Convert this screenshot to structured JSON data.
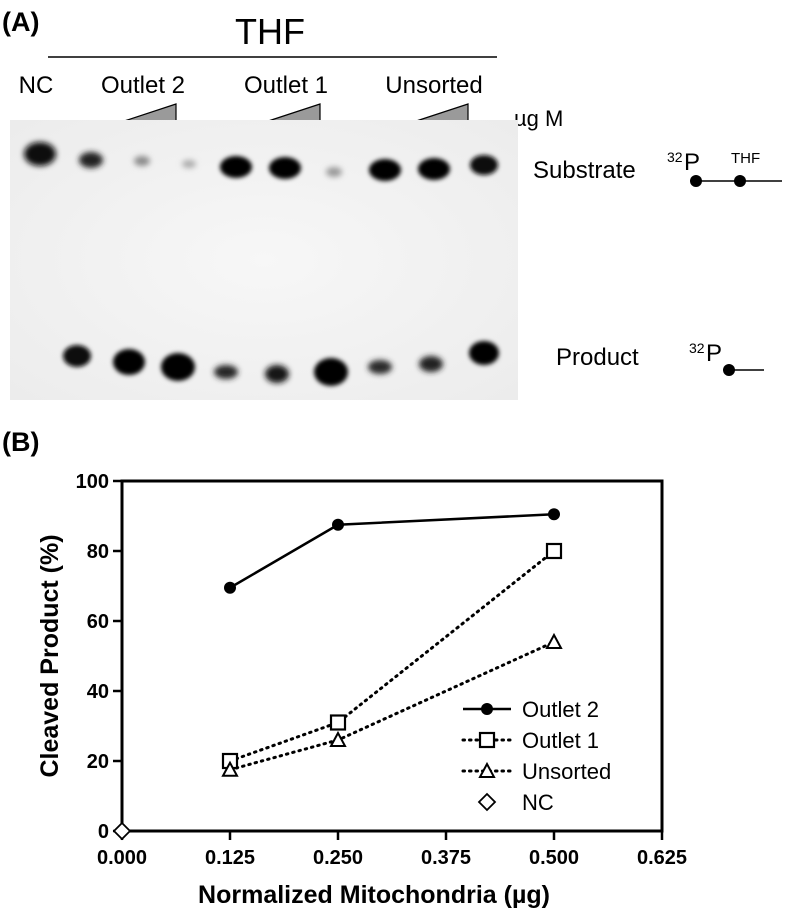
{
  "panel_a": {
    "label": "(A)",
    "treatment": "THF",
    "nc_label": "NC",
    "groups": [
      "Outlet 2",
      "Outlet 1",
      "Unsorted"
    ],
    "dose_label": "µg M",
    "substrate_label": "Substrate",
    "product_label": "Product",
    "isotope_sup": "32",
    "isotope": "P",
    "thf_label": "THF"
  },
  "panel_b": {
    "label": "(B)"
  },
  "chart_data": {
    "type": "line",
    "xlabel": "Normalized Mitochondria (µg)",
    "ylabel": "Cleaved Product (%)",
    "xlim": [
      0,
      0.625
    ],
    "ylim": [
      0,
      100
    ],
    "xticks": [
      "0.000",
      "0.125",
      "0.250",
      "0.375",
      "0.500",
      "0.625"
    ],
    "yticks": [
      "0",
      "20",
      "40",
      "60",
      "80",
      "100"
    ],
    "grid": false,
    "legend_position": "bottom-right",
    "series": [
      {
        "name": "Outlet 2",
        "marker": "filled-circle",
        "line": "solid",
        "x": [
          0.125,
          0.25,
          0.5
        ],
        "y": [
          69.5,
          87.5,
          90.5
        ]
      },
      {
        "name": "Outlet 1",
        "marker": "open-square",
        "line": "dotted",
        "x": [
          0.125,
          0.25,
          0.5
        ],
        "y": [
          20,
          31,
          80
        ]
      },
      {
        "name": "Unsorted",
        "marker": "open-triangle",
        "line": "dotted",
        "x": [
          0.125,
          0.25,
          0.5
        ],
        "y": [
          17.5,
          26,
          54
        ]
      },
      {
        "name": "NC",
        "marker": "open-diamond",
        "line": "none",
        "x": [
          0
        ],
        "y": [
          0
        ]
      }
    ]
  }
}
